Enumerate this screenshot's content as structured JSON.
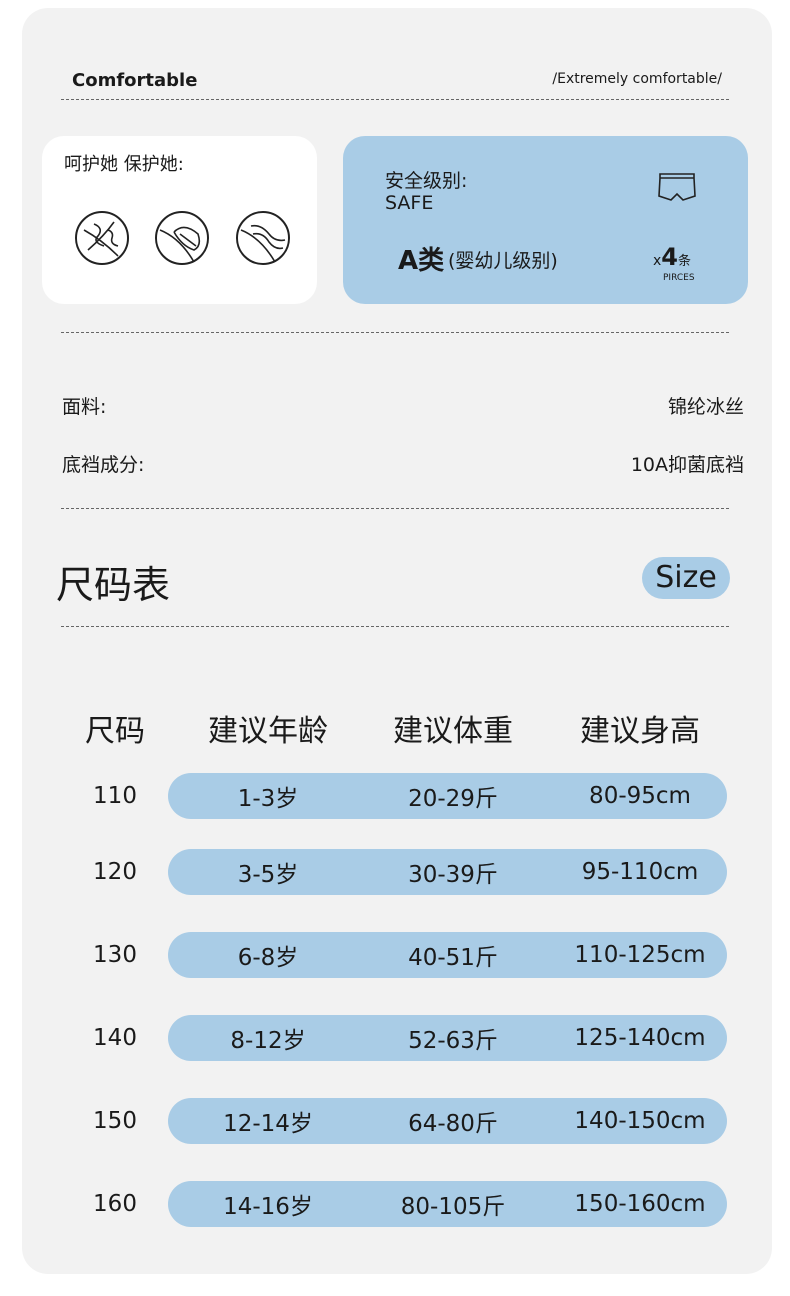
{
  "header": {
    "left": "Comfortable",
    "right": "/Extremely comfortable/"
  },
  "care": {
    "title": "呵护她 保护她:",
    "icons": [
      "fiber-icon",
      "feather-icon",
      "wave-icon"
    ]
  },
  "safety": {
    "label": "安全级别:",
    "label_en": "SAFE",
    "grade": "A类",
    "grade_note": "(婴幼儿级别)",
    "count_prefix": "x",
    "count": "4",
    "count_unit": "条",
    "pieces": "PIRCES",
    "icon": "underwear-icon"
  },
  "specs": [
    {
      "label": "面料:",
      "value": "锦纶冰丝"
    },
    {
      "label": "底裆成分:",
      "value": "10A抑菌底裆"
    }
  ],
  "size_section": {
    "title": "尺码表",
    "badge": "Size"
  },
  "table": {
    "headers": [
      "尺码",
      "建议年龄",
      "建议体重",
      "建议身高"
    ],
    "rows": [
      [
        "110",
        "1-3岁",
        "20-29斤",
        "80-95cm"
      ],
      [
        "120",
        "3-5岁",
        "30-39斤",
        "95-110cm"
      ],
      [
        "130",
        "6-8岁",
        "40-51斤",
        "110-125cm"
      ],
      [
        "140",
        "8-12岁",
        "52-63斤",
        "125-140cm"
      ],
      [
        "150",
        "12-14岁",
        "64-80斤",
        "140-150cm"
      ],
      [
        "160",
        "14-16岁",
        "80-105斤",
        "150-160cm"
      ]
    ]
  },
  "colors": {
    "accent": "#a9cce6",
    "background": "#f2f2f2"
  }
}
